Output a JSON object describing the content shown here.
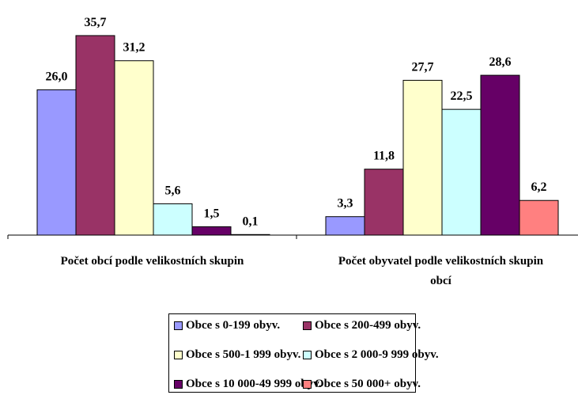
{
  "chart_data": {
    "type": "bar",
    "categories": [
      "Počet obcí podle velikostních skupin",
      "Počet obyvatel podle velikostních skupin obcí"
    ],
    "series": [
      {
        "name": "Obce s 0-199 obyv.",
        "color": "#9999ff",
        "values": [
          26.0,
          3.3
        ],
        "value_labels": [
          "26,0",
          "3,3"
        ]
      },
      {
        "name": "Obce s 200-499 obyv.",
        "color": "#993366",
        "values": [
          35.7,
          11.8
        ],
        "value_labels": [
          "35,7",
          "11,8"
        ]
      },
      {
        "name": "Obce s 500-1 999 obyv.",
        "color": "#ffffcc",
        "values": [
          31.2,
          27.7
        ],
        "value_labels": [
          "31,2",
          "27,7"
        ]
      },
      {
        "name": "Obce s 2 000-9 999 obyv.",
        "color": "#ccffff",
        "values": [
          5.6,
          22.5
        ],
        "value_labels": [
          "5,6",
          "22,5"
        ]
      },
      {
        "name": "Obce s 10 000-49 999 obyv.",
        "color": "#660066",
        "values": [
          1.5,
          28.6
        ],
        "value_labels": [
          "1,5",
          "28,6"
        ]
      },
      {
        "name": "Obce s 50 000+ obyv.",
        "color": "#ff8080",
        "values": [
          0.1,
          6.2
        ],
        "value_labels": [
          "0,1",
          "6,2"
        ]
      }
    ]
  }
}
